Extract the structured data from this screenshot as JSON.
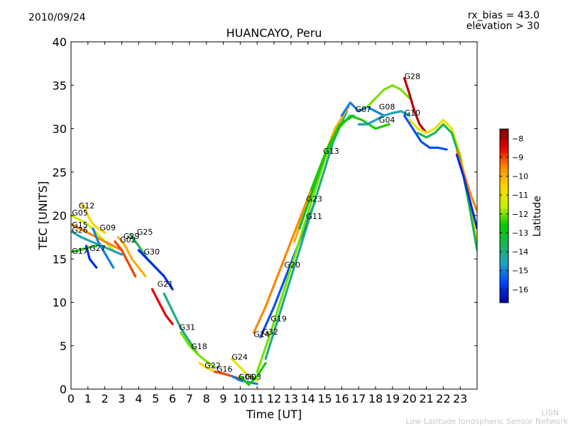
{
  "header": {
    "date": "2010/09/24",
    "rx_bias": "rx_bias = 43.0",
    "elevation": "elevation > 30"
  },
  "watermark": {
    "line1": "LISN",
    "line2": "Low-Latitude Ionospheric Sensor Network"
  },
  "chart_data": {
    "type": "scatter",
    "title": "HUANCAYO, Peru",
    "xlabel": "Time [UT]",
    "ylabel": "TEC [UNITS]",
    "xlim": [
      0,
      24
    ],
    "ylim": [
      0,
      40
    ],
    "xticks": [
      0,
      1,
      2,
      3,
      4,
      5,
      6,
      7,
      8,
      9,
      10,
      11,
      12,
      13,
      14,
      15,
      16,
      17,
      18,
      19,
      20,
      21,
      22,
      23
    ],
    "yticks": [
      0,
      5,
      10,
      15,
      20,
      25,
      30,
      35,
      40
    ],
    "colorbar": {
      "label": "Latitude",
      "ticks": [
        -8,
        -9,
        -10,
        -11,
        -12,
        -13,
        -14,
        -15,
        -16
      ],
      "range": [
        -16.7,
        -7.5
      ],
      "colors": [
        "#00008f",
        "#0040ff",
        "#1ea0c8",
        "#1eb45a",
        "#00c800",
        "#c8f000",
        "#ffd700",
        "#ff8c00",
        "#e60000",
        "#800000"
      ]
    },
    "series": [
      {
        "name": "G05",
        "label_at": [
          0.05,
          20.0
        ],
        "lat": -11.5,
        "x": [
          0.0,
          0.5,
          1.0,
          1.5,
          2.0,
          2.5
        ],
        "y": [
          20.0,
          19.5,
          19.0,
          18.0,
          17.0,
          16.0
        ]
      },
      {
        "name": "G12",
        "label_at": [
          0.45,
          20.8
        ],
        "lat": -10.5,
        "x": [
          0.6,
          0.8,
          1.0,
          1.3,
          1.6,
          2.0
        ],
        "y": [
          21.3,
          21.0,
          20.0,
          19.0,
          18.5,
          18.0
        ]
      },
      {
        "name": "G15",
        "label_at": [
          0.05,
          18.6
        ],
        "lat": -9.5,
        "x": [
          0.0,
          0.5,
          1.0,
          1.5,
          2.0,
          2.5,
          3.0
        ],
        "y": [
          19.0,
          18.5,
          18.0,
          17.5,
          17.0,
          16.5,
          16.0
        ]
      },
      {
        "name": "G26",
        "label_at": [
          0.05,
          18.0
        ],
        "lat": -14.5,
        "x": [
          0.0,
          0.6,
          1.2,
          1.8,
          2.4,
          3.0
        ],
        "y": [
          18.2,
          17.5,
          17.0,
          16.5,
          16.0,
          15.5
        ]
      },
      {
        "name": "G09",
        "label_at": [
          1.7,
          18.3
        ],
        "lat": -15.0,
        "x": [
          1.3,
          1.6,
          1.9,
          2.2,
          2.5
        ],
        "y": [
          18.5,
          17.0,
          16.0,
          15.0,
          14.0
        ]
      },
      {
        "name": "G17",
        "label_at": [
          0.05,
          15.6
        ],
        "lat": -12.5,
        "x": [
          0.0,
          0.5,
          1.0,
          1.5
        ],
        "y": [
          15.8,
          16.0,
          16.3,
          16.5
        ]
      },
      {
        "name": "G27",
        "label_at": [
          1.1,
          15.9
        ],
        "lat": -16.0,
        "x": [
          0.9,
          1.1,
          1.3,
          1.5
        ],
        "y": [
          16.5,
          15.0,
          14.5,
          14.0
        ]
      },
      {
        "name": "G29",
        "label_at": [
          3.1,
          17.3
        ],
        "lat": -10.0,
        "x": [
          2.8,
          3.2,
          3.6,
          4.0,
          4.4
        ],
        "y": [
          17.5,
          16.5,
          15.0,
          14.0,
          13.0
        ]
      },
      {
        "name": "G02",
        "label_at": [
          2.9,
          16.9
        ],
        "lat": -9.0,
        "x": [
          2.6,
          3.0,
          3.4,
          3.8
        ],
        "y": [
          17.0,
          16.0,
          14.5,
          13.0
        ]
      },
      {
        "name": "G25",
        "label_at": [
          3.9,
          17.8
        ],
        "lat": -13.5,
        "x": [
          3.5,
          4.0,
          4.5,
          5.0,
          5.5
        ],
        "y": [
          17.8,
          16.5,
          15.0,
          14.0,
          13.0
        ]
      },
      {
        "name": "G30",
        "label_at": [
          4.3,
          15.5
        ],
        "lat": -16.0,
        "x": [
          4.0,
          4.5,
          5.0,
          5.5,
          6.0
        ],
        "y": [
          16.0,
          15.0,
          14.0,
          13.0,
          11.5
        ]
      },
      {
        "name": "G21",
        "label_at": [
          5.1,
          11.8
        ],
        "lat": -8.5,
        "x": [
          4.8,
          5.2,
          5.6,
          6.0
        ],
        "y": [
          11.5,
          10.0,
          8.5,
          7.5
        ]
      },
      {
        "name": "G31",
        "label_at": [
          6.4,
          6.8
        ],
        "lat": -14.0,
        "x": [
          5.5,
          6.0,
          6.5,
          7.0,
          7.5
        ],
        "y": [
          11.0,
          9.0,
          7.0,
          5.5,
          4.0
        ]
      },
      {
        "name": "G18",
        "label_at": [
          7.1,
          4.6
        ],
        "lat": -12.0,
        "x": [
          6.5,
          7.0,
          7.5,
          8.0,
          8.5
        ],
        "y": [
          6.5,
          5.0,
          4.0,
          3.2,
          2.5
        ]
      },
      {
        "name": "G22",
        "label_at": [
          7.9,
          2.4
        ],
        "lat": -10.5,
        "x": [
          7.6,
          8.0,
          8.5,
          9.0,
          9.5
        ],
        "y": [
          3.0,
          2.5,
          2.0,
          1.8,
          1.5
        ]
      },
      {
        "name": "G16",
        "label_at": [
          8.6,
          2.0
        ],
        "lat": -9.0,
        "x": [
          8.5,
          9.0,
          9.5,
          10.0
        ],
        "y": [
          2.0,
          1.8,
          1.5,
          1.2
        ]
      },
      {
        "name": "G24",
        "label_at": [
          9.5,
          3.4
        ],
        "lat": -11.0,
        "x": [
          9.5,
          10.0,
          10.5,
          11.0
        ],
        "y": [
          3.5,
          2.5,
          1.5,
          1.0
        ]
      },
      {
        "name": "G06",
        "label_at": [
          9.9,
          1.1
        ],
        "lat": -15.0,
        "x": [
          9.5,
          10.0,
          10.5,
          11.0
        ],
        "y": [
          1.5,
          1.0,
          0.8,
          0.6
        ]
      },
      {
        "name": "G03",
        "label_at": [
          10.3,
          1.1
        ],
        "lat": -12.5,
        "x": [
          10.0,
          10.5,
          11.0,
          11.5
        ],
        "y": [
          1.5,
          0.5,
          1.5,
          3.0
        ]
      },
      {
        "name": "G14",
        "label_at": [
          10.8,
          6.0
        ],
        "lat": -9.5,
        "x": [
          10.8,
          11.5,
          12.2,
          13.0,
          13.8,
          14.5
        ],
        "y": [
          6.5,
          9.5,
          13.0,
          17.0,
          21.0,
          24.5
        ]
      },
      {
        "name": "G32",
        "label_at": [
          11.3,
          6.3
        ],
        "lat": -15.5,
        "x": [
          11.2,
          12.0,
          12.8,
          13.6,
          14.4
        ],
        "y": [
          6.0,
          9.5,
          13.5,
          17.5,
          21.5
        ]
      },
      {
        "name": "G19",
        "label_at": [
          11.8,
          7.8
        ],
        "lat": -12.0,
        "x": [
          11.0,
          11.8,
          12.6,
          13.4,
          14.2,
          15.0,
          15.8
        ],
        "y": [
          2.0,
          6.5,
          11.5,
          16.5,
          21.5,
          26.5,
          30.5
        ]
      },
      {
        "name": "G20",
        "label_at": [
          12.6,
          14.0
        ],
        "lat": -14.0,
        "x": [
          11.5,
          12.3,
          13.1,
          13.9,
          14.7,
          15.5,
          16.3
        ],
        "y": [
          3.5,
          8.5,
          13.5,
          18.5,
          23.5,
          28.5,
          32.0
        ]
      },
      {
        "name": "G23",
        "label_at": [
          13.9,
          21.6
        ],
        "lat": -10.0,
        "x": [
          13.2,
          14.0,
          14.8,
          15.6,
          16.4
        ],
        "y": [
          17.0,
          21.5,
          26.0,
          30.0,
          32.5
        ]
      },
      {
        "name": "G11",
        "label_at": [
          13.9,
          19.6
        ],
        "lat": -13.0,
        "x": [
          13.5,
          14.3,
          15.1,
          15.9,
          16.7
        ],
        "y": [
          18.5,
          23.0,
          27.5,
          30.5,
          31.5
        ]
      },
      {
        "name": "G13",
        "label_at": [
          14.9,
          27.1
        ],
        "lat": -12.5,
        "x": [
          14.2,
          15.0,
          15.8,
          16.5,
          17.2,
          18.0,
          18.8
        ],
        "y": [
          23.0,
          27.0,
          30.0,
          31.5,
          31.0,
          30.0,
          30.5
        ]
      },
      {
        "name": "G07",
        "label_at": [
          16.8,
          31.9
        ],
        "lat": -15.0,
        "x": [
          16.0,
          16.5,
          17.0,
          17.5,
          18.0,
          18.5
        ],
        "y": [
          31.5,
          33.0,
          32.0,
          32.5,
          32.0,
          31.5
        ]
      },
      {
        "name": "G08",
        "label_at": [
          18.2,
          32.2
        ],
        "lat": -12.0,
        "x": [
          17.5,
          18.0,
          18.5,
          19.0,
          19.5,
          20.0
        ],
        "y": [
          32.5,
          33.5,
          34.5,
          35.0,
          34.5,
          33.5
        ]
      },
      {
        "name": "G04",
        "label_at": [
          18.2,
          30.7
        ],
        "lat": -14.5,
        "x": [
          17.0,
          17.5,
          18.0,
          18.5,
          19.0,
          19.5,
          20.0
        ],
        "y": [
          30.5,
          30.5,
          31.0,
          31.5,
          31.8,
          32.0,
          31.5
        ]
      },
      {
        "name": "G28",
        "label_at": [
          19.7,
          35.7
        ],
        "lat": -8.0,
        "x": [
          19.7,
          20.0,
          20.3,
          20.6,
          21.0
        ],
        "y": [
          35.8,
          34.0,
          32.0,
          30.5,
          29.5
        ]
      },
      {
        "name": "G10",
        "label_at": [
          19.7,
          31.5
        ],
        "lat": -15.5,
        "x": [
          19.7,
          20.2,
          20.7,
          21.2,
          21.7,
          22.2
        ],
        "y": [
          31.5,
          30.0,
          28.5,
          27.8,
          27.8,
          27.6
        ]
      },
      {
        "name": "",
        "label_at": null,
        "lat": -11.0,
        "x": [
          20.0,
          20.5,
          21.0,
          21.5,
          22.0,
          22.5,
          23.0,
          23.5,
          24.0
        ],
        "y": [
          31.0,
          30.0,
          29.5,
          30.0,
          31.0,
          30.0,
          27.0,
          22.0,
          17.0
        ]
      },
      {
        "name": "",
        "label_at": null,
        "lat": -13.5,
        "x": [
          20.5,
          21.0,
          21.5,
          22.0,
          22.5,
          23.0,
          23.5,
          24.0
        ],
        "y": [
          29.5,
          29.0,
          29.5,
          30.5,
          29.5,
          26.5,
          21.5,
          16.0
        ]
      },
      {
        "name": "",
        "label_at": null,
        "lat": -9.5,
        "x": [
          22.8,
          23.2,
          23.6,
          24.0
        ],
        "y": [
          27.5,
          25.0,
          22.5,
          20.5
        ]
      },
      {
        "name": "",
        "label_at": null,
        "lat": -16.0,
        "x": [
          22.8,
          23.2,
          23.6,
          24.0
        ],
        "y": [
          27.0,
          24.5,
          21.5,
          18.5
        ]
      }
    ]
  }
}
